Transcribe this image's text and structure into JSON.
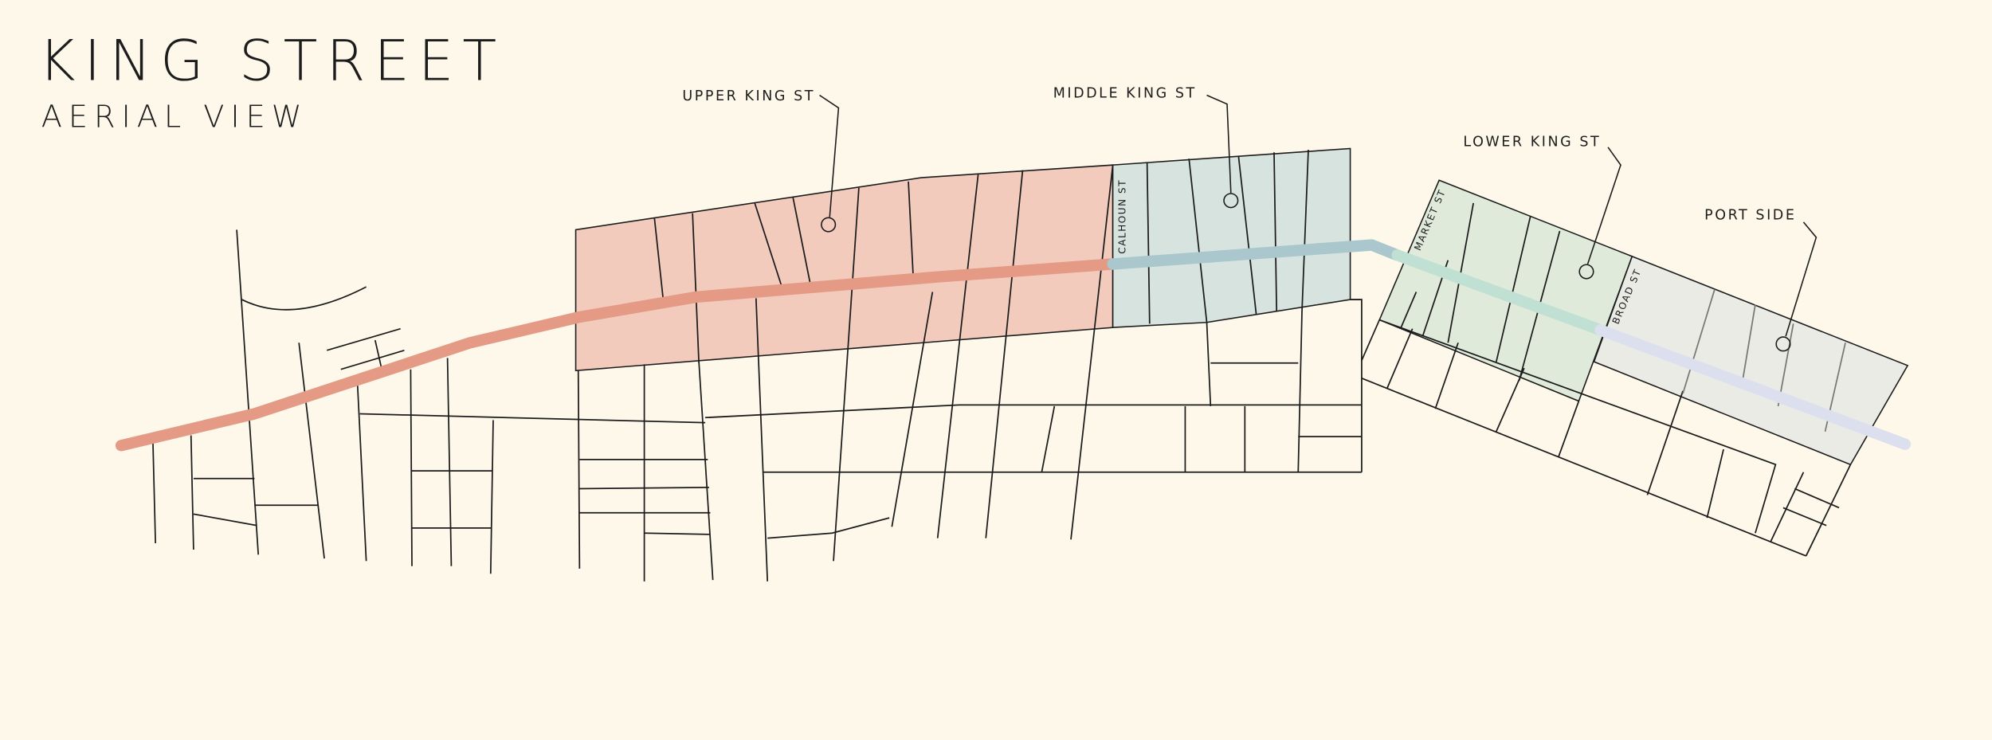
{
  "header": {
    "title": "KING STREET",
    "subtitle": "AERIAL VIEW"
  },
  "districts": [
    {
      "label": "UPPER KING ST"
    },
    {
      "label": "MIDDLE KING ST"
    },
    {
      "label": "LOWER KING ST"
    },
    {
      "label": "PORT SIDE"
    }
  ],
  "streets": [
    {
      "label": "CALHOUN ST"
    },
    {
      "label": "MARKET ST"
    },
    {
      "label": "BROAD ST"
    }
  ]
}
